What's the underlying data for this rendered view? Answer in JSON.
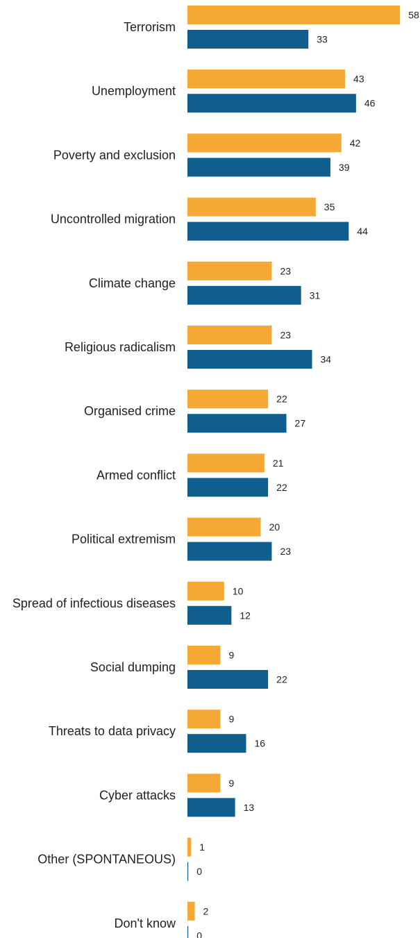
{
  "chart_data": {
    "type": "bar",
    "orientation": "horizontal",
    "categories": [
      "Terrorism",
      "Unemployment",
      "Poverty and exclusion",
      "Uncontrolled migration",
      "Climate change",
      "Religious radicalism",
      "Organised crime",
      "Armed conflict",
      "Political extremism",
      "Spread of infectious diseases",
      "Social dumping",
      "Threats to data privacy",
      "Cyber attacks",
      "Other (SPONTANEOUS)",
      "Don't know"
    ],
    "series": [
      {
        "color": "#F5A833",
        "values": [
          58,
          43,
          42,
          35,
          23,
          23,
          22,
          21,
          20,
          10,
          9,
          9,
          9,
          1,
          2
        ]
      },
      {
        "color": "#0F5E8E",
        "values": [
          33,
          46,
          39,
          44,
          31,
          34,
          27,
          22,
          23,
          12,
          22,
          16,
          13,
          0,
          0
        ]
      }
    ],
    "legend": "none",
    "grid": false,
    "xlim": [
      0,
      60
    ]
  }
}
